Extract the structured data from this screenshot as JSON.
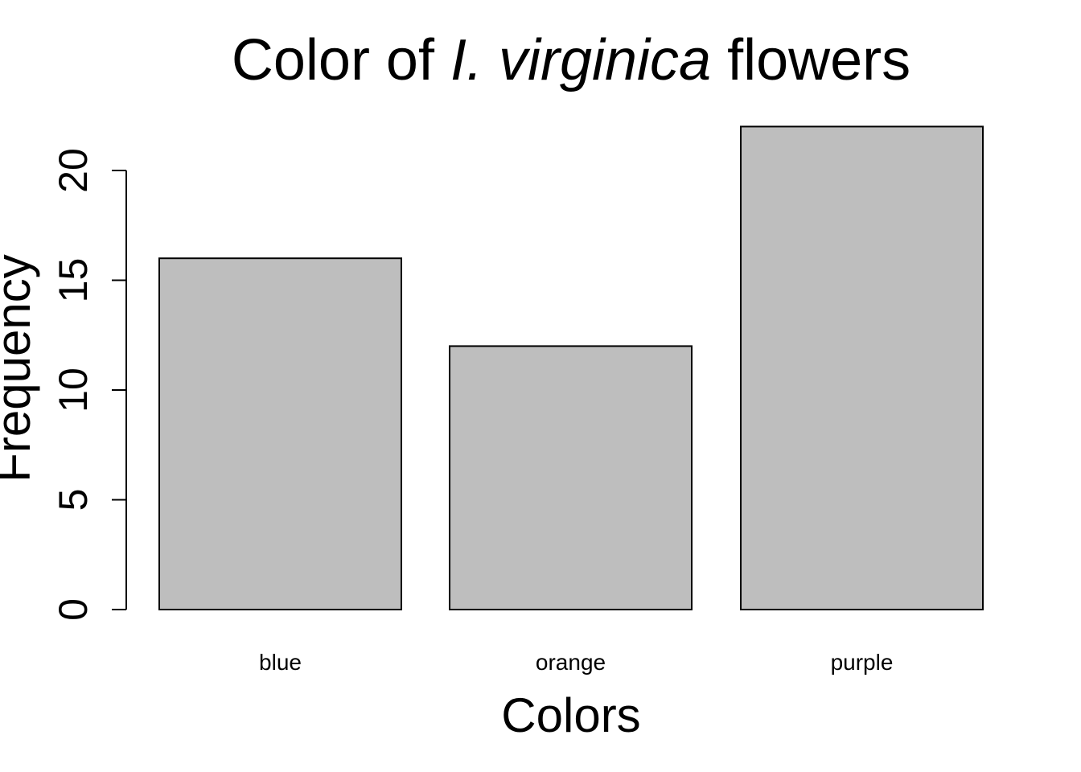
{
  "chart_data": {
    "type": "bar",
    "title": {
      "prefix": "Color of ",
      "italic": "I. virginica",
      "suffix": " flowers"
    },
    "xlabel": "Colors",
    "ylabel": "Frequency",
    "categories": [
      "blue",
      "orange",
      "purple"
    ],
    "values": [
      16,
      12,
      22
    ],
    "ylim": [
      0,
      22
    ],
    "yticks": [
      0,
      5,
      10,
      15,
      20
    ],
    "grid": false,
    "legend": "none",
    "colors": {
      "bar_fill": "#bebebe",
      "bar_stroke": "#000000"
    }
  }
}
